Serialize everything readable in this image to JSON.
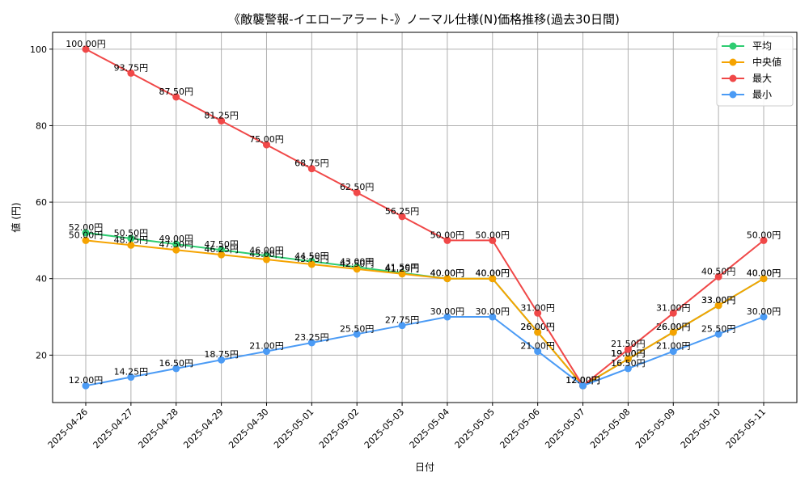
{
  "chart_data": {
    "type": "line",
    "title": "《敵襲警報-イエローアラート-》ノーマル仕様(N)価格推移(過去30日間)",
    "xlabel": "日付",
    "ylabel": "値 (円)",
    "ylim": [
      7.6,
      104.4
    ],
    "yticks": [
      20,
      40,
      60,
      80,
      100
    ],
    "grid": true,
    "legend_position": "top-right",
    "label_suffix": "円",
    "categories": [
      "2025-04-26",
      "2025-04-27",
      "2025-04-28",
      "2025-04-29",
      "2025-04-30",
      "2025-05-01",
      "2025-05-02",
      "2025-05-03",
      "2025-05-04",
      "2025-05-05",
      "2025-05-06",
      "2025-05-07",
      "2025-05-08",
      "2025-05-09",
      "2025-05-10",
      "2025-05-11"
    ],
    "series": [
      {
        "name": "平均",
        "color": "#2ecc71",
        "values": [
          52.0,
          50.5,
          49.0,
          47.5,
          46.0,
          44.5,
          43.0,
          41.5,
          40.0,
          40.0,
          26.0,
          12.0,
          19.0,
          26.0,
          33.0,
          40.0
        ]
      },
      {
        "name": "中央値",
        "color": "#f5a300",
        "values": [
          50.0,
          48.75,
          47.5,
          46.25,
          45.0,
          43.75,
          42.5,
          41.25,
          40.0,
          40.0,
          26.0,
          12.0,
          19.0,
          26.0,
          33.0,
          40.0
        ]
      },
      {
        "name": "最大",
        "color": "#f04848",
        "values": [
          100.0,
          93.75,
          87.5,
          81.25,
          75.0,
          68.75,
          62.5,
          56.25,
          50.0,
          50.0,
          31.0,
          12.0,
          21.5,
          31.0,
          40.5,
          50.0
        ]
      },
      {
        "name": "最小",
        "color": "#4b9bf5",
        "values": [
          12.0,
          14.25,
          16.5,
          18.75,
          21.0,
          23.25,
          25.5,
          27.75,
          30.0,
          30.0,
          21.0,
          12.0,
          16.5,
          21.0,
          25.5,
          30.0
        ]
      }
    ]
  }
}
